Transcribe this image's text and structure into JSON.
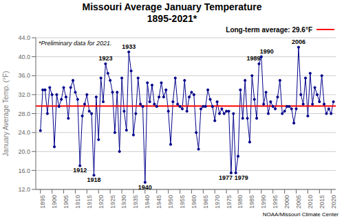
{
  "chart_data": {
    "type": "line",
    "title": "Missouri Average January Temperature",
    "subtitle": "1895-2021*",
    "y_label": "January Average Temp. (°F)",
    "x": [
      1895,
      1896,
      1897,
      1898,
      1899,
      1900,
      1901,
      1902,
      1903,
      1904,
      1905,
      1906,
      1907,
      1908,
      1909,
      1910,
      1911,
      1912,
      1913,
      1914,
      1915,
      1916,
      1917,
      1918,
      1919,
      1920,
      1921,
      1922,
      1923,
      1924,
      1925,
      1926,
      1927,
      1928,
      1929,
      1930,
      1931,
      1932,
      1933,
      1934,
      1935,
      1936,
      1937,
      1938,
      1939,
      1940,
      1941,
      1942,
      1943,
      1944,
      1945,
      1946,
      1947,
      1948,
      1949,
      1950,
      1951,
      1952,
      1953,
      1954,
      1955,
      1956,
      1957,
      1958,
      1959,
      1960,
      1961,
      1962,
      1963,
      1964,
      1965,
      1966,
      1967,
      1968,
      1969,
      1970,
      1971,
      1972,
      1973,
      1974,
      1975,
      1976,
      1977,
      1978,
      1979,
      1980,
      1981,
      1982,
      1983,
      1984,
      1985,
      1986,
      1987,
      1988,
      1989,
      1990,
      1991,
      1992,
      1993,
      1994,
      1995,
      1996,
      1997,
      1998,
      1999,
      2000,
      2001,
      2002,
      2003,
      2004,
      2005,
      2006,
      2007,
      2008,
      2009,
      2010,
      2011,
      2012,
      2013,
      2014,
      2015,
      2016,
      2017,
      2018,
      2019,
      2020,
      2021
    ],
    "values": [
      24.4,
      33.0,
      33.0,
      28.0,
      33.5,
      32.0,
      21.0,
      32.0,
      29.5,
      31.0,
      33.5,
      31.5,
      27.0,
      33.5,
      35.0,
      32.5,
      31.0,
      17.0,
      27.5,
      30.0,
      32.0,
      28.5,
      28.0,
      15.0,
      31.5,
      22.5,
      35.5,
      30.5,
      38.5,
      36.5,
      35.0,
      32.5,
      24.0,
      32.5,
      20.0,
      35.5,
      28.5,
      24.5,
      41.0,
      37.0,
      23.5,
      28.0,
      35.5,
      30.0,
      29.5,
      13.5,
      34.5,
      30.5,
      34.0,
      30.0,
      29.5,
      31.5,
      34.5,
      31.5,
      33.0,
      28.5,
      21.5,
      30.5,
      35.5,
      30.0,
      29.5,
      29.0,
      35.0,
      28.5,
      31.5,
      32.5,
      32.0,
      24.0,
      20.5,
      29.0,
      29.5,
      29.5,
      33.0,
      31.0,
      29.5,
      26.5,
      30.5,
      28.0,
      29.0,
      28.0,
      28.5,
      28.5,
      15.5,
      28.0,
      15.5,
      19.0,
      33.0,
      27.0,
      35.0,
      27.0,
      22.0,
      36.0,
      31.0,
      27.0,
      38.5,
      40.0,
      30.0,
      32.5,
      28.0,
      30.5,
      29.5,
      29.0,
      31.5,
      35.0,
      28.0,
      28.5,
      29.5,
      29.5,
      29.0,
      26.0,
      29.0,
      42.0,
      32.0,
      30.0,
      35.5,
      27.5,
      36.5,
      30.0,
      33.5,
      32.0,
      30.5,
      36.0,
      30.0,
      28.0,
      29.0,
      28.0,
      30.5
    ],
    "color": "#00008b",
    "marker": "circle",
    "xlim": [
      1893,
      2022
    ],
    "xticks": [
      1895,
      1900,
      1905,
      1910,
      1915,
      1920,
      1925,
      1930,
      1935,
      1940,
      1945,
      1950,
      1955,
      1960,
      1965,
      1970,
      1975,
      1980,
      1985,
      1990,
      1995,
      2000,
      2005,
      2010,
      2015,
      2020
    ],
    "ylim": [
      12,
      44
    ],
    "yticks": [
      {
        "value": 12,
        "label": "12.0"
      },
      {
        "value": 16,
        "label": "16.0"
      },
      {
        "value": 20,
        "label": "20.0"
      },
      {
        "value": 24,
        "label": "24.0"
      },
      {
        "value": 28,
        "label": "28.0"
      },
      {
        "value": 32,
        "label": "32.0"
      },
      {
        "value": 36,
        "label": "36.0"
      },
      {
        "value": 40,
        "label": "40.0"
      },
      {
        "value": 44,
        "label": "44.0"
      }
    ],
    "grid": "y",
    "reference_line": {
      "value": 29.6,
      "label": "Long-term average: 29.6°F",
      "color": "#ff0000"
    },
    "annotations": [
      {
        "text": "1912",
        "x": 1912,
        "y": 17.0
      },
      {
        "text": "1918",
        "x": 1918,
        "y": 15.0
      },
      {
        "text": "1923",
        "x": 1923,
        "y": 38.5
      },
      {
        "text": "1933",
        "x": 1933,
        "y": 41.0
      },
      {
        "text": "1940",
        "x": 1940,
        "y": 13.5
      },
      {
        "text": "1977",
        "x": 1977,
        "y": 15.5
      },
      {
        "text": "1979",
        "x": 1979,
        "y": 15.5
      },
      {
        "text": "1989",
        "x": 1989,
        "y": 38.5
      },
      {
        "text": "1990",
        "x": 1990,
        "y": 40.0
      },
      {
        "text": "2006",
        "x": 2006,
        "y": 42.0
      }
    ],
    "note": "*Preliminary data for 2021.",
    "source": "NOAA/Missouri Climate Center"
  }
}
